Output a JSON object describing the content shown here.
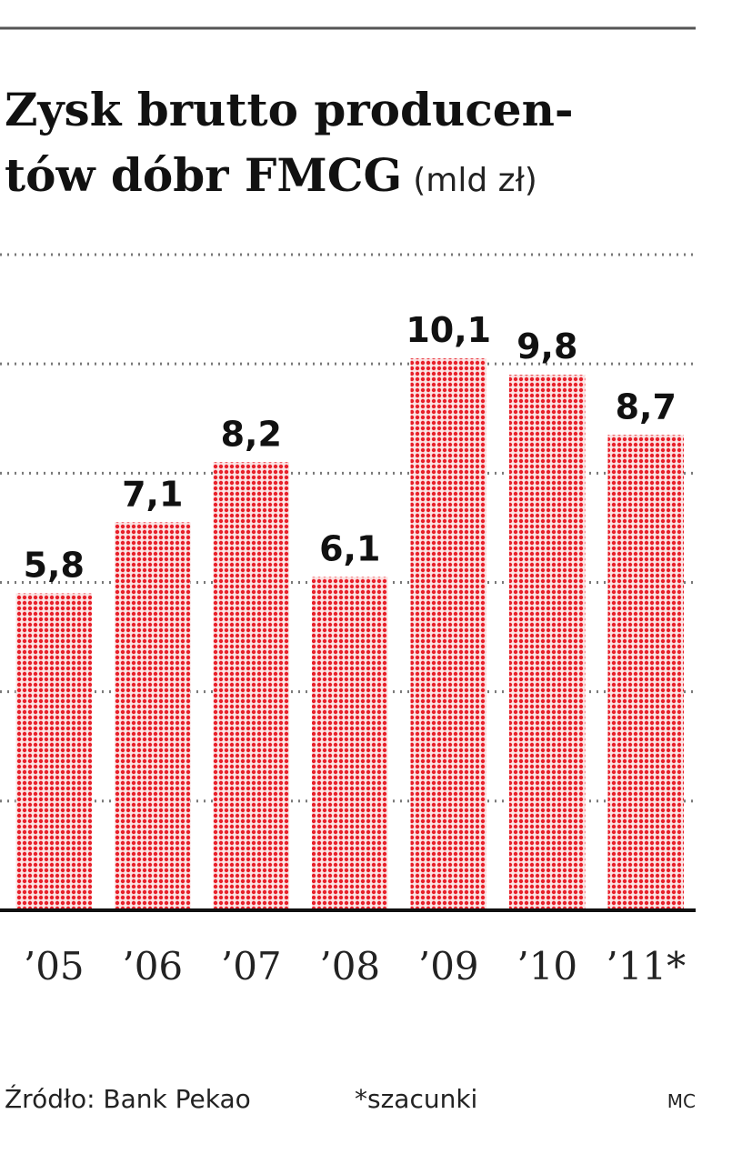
{
  "chart_data": {
    "type": "bar",
    "title": [
      "Zysk brutto producen-",
      "tów dóbr FMCG"
    ],
    "unit": "(mld zł)",
    "categories": [
      "’05",
      "’06",
      "’07",
      "’08",
      "’09",
      "’10",
      "’11*"
    ],
    "values": [
      5.8,
      7.1,
      8.2,
      6.1,
      10.1,
      9.8,
      8.7
    ],
    "value_labels": [
      "5,8",
      "7,1",
      "8,2",
      "6,1",
      "10,1",
      "9,8",
      "8,7"
    ],
    "color": "#e8202a",
    "ylim": [
      0,
      12
    ],
    "yticks": [
      0,
      2,
      4,
      6,
      8,
      10,
      12
    ],
    "grid": true,
    "source": "Źródło: Bank Pekao",
    "note": "*szacunki",
    "credit": "MC"
  }
}
